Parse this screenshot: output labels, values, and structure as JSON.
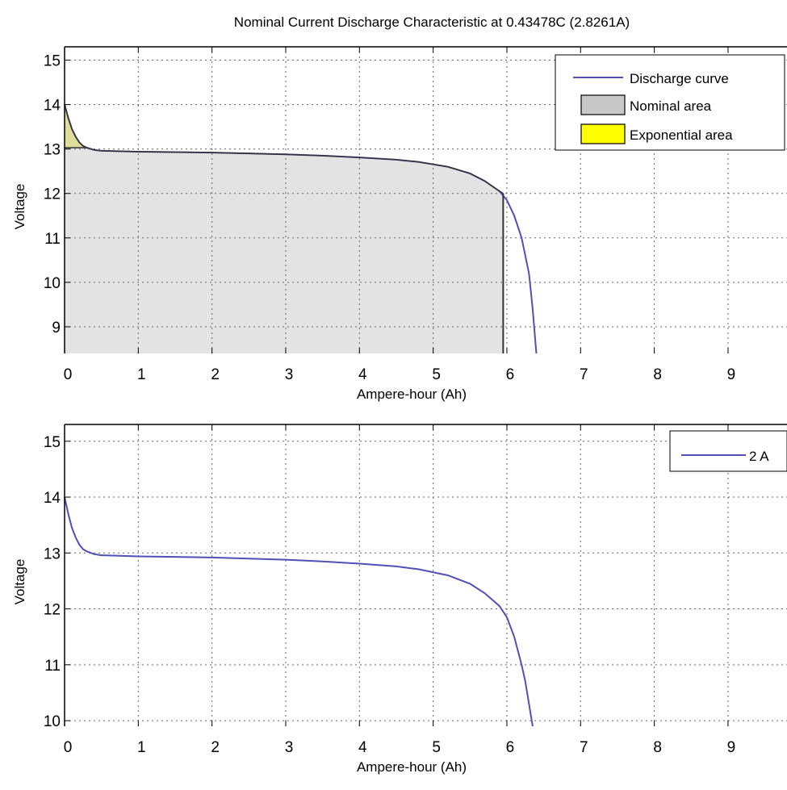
{
  "chart_data": [
    {
      "type": "line",
      "title": "Nominal Current Discharge Characteristic at 0.43478C (2.8261A)",
      "xlabel": "Ampere-hour (Ah)",
      "ylabel": "Voltage",
      "xlim": [
        0,
        9.8
      ],
      "ylim": [
        8.4,
        15.3
      ],
      "xticks": [
        0,
        1,
        2,
        3,
        4,
        5,
        6,
        7,
        8,
        9
      ],
      "yticks": [
        9,
        10,
        11,
        12,
        13,
        14,
        15
      ],
      "grid": true,
      "legend_position": "top-right",
      "series": [
        {
          "name": "Discharge curve",
          "color": "#5050b8",
          "x": [
            0,
            0.05,
            0.1,
            0.15,
            0.2,
            0.25,
            0.3,
            0.4,
            0.5,
            0.75,
            1,
            1.5,
            2,
            2.5,
            3,
            3.5,
            4,
            4.5,
            4.8,
            5.2,
            5.5,
            5.7,
            5.9,
            6.0,
            6.1,
            6.2,
            6.3,
            6.35,
            6.4
          ],
          "y": [
            14.0,
            13.7,
            13.45,
            13.28,
            13.15,
            13.07,
            13.03,
            12.98,
            12.96,
            12.95,
            12.94,
            12.93,
            12.92,
            12.9,
            12.88,
            12.85,
            12.81,
            12.76,
            12.71,
            12.6,
            12.45,
            12.28,
            12.05,
            11.85,
            11.5,
            11.0,
            10.2,
            9.4,
            8.4
          ]
        },
        {
          "name": "Nominal area",
          "color": "#c8c8c8",
          "x_end": 5.95,
          "y_end": 12.0
        },
        {
          "name": "Exponential area",
          "color": "#ffff00",
          "x_end": 0.3,
          "y_end": 13.03
        }
      ]
    },
    {
      "type": "line",
      "title": "",
      "xlabel": "Ampere-hour (Ah)",
      "ylabel": "Voltage",
      "xlim": [
        0,
        9.8
      ],
      "ylim": [
        9.9,
        15.3
      ],
      "xticks": [
        0,
        1,
        2,
        3,
        4,
        5,
        6,
        7,
        8,
        9
      ],
      "yticks": [
        10,
        11,
        12,
        13,
        14,
        15
      ],
      "grid": true,
      "legend_position": "top-right",
      "series": [
        {
          "name": "2 A",
          "color": "#5050b8",
          "x": [
            0,
            0.05,
            0.1,
            0.15,
            0.2,
            0.25,
            0.3,
            0.4,
            0.5,
            0.75,
            1,
            1.5,
            2,
            2.5,
            3,
            3.5,
            4,
            4.5,
            4.8,
            5.2,
            5.5,
            5.7,
            5.9,
            6.0,
            6.1,
            6.2,
            6.25,
            6.3,
            6.35
          ],
          "y": [
            14.0,
            13.7,
            13.45,
            13.28,
            13.15,
            13.07,
            13.03,
            12.98,
            12.96,
            12.95,
            12.94,
            12.93,
            12.92,
            12.9,
            12.88,
            12.85,
            12.81,
            12.76,
            12.71,
            12.6,
            12.45,
            12.28,
            12.05,
            11.85,
            11.5,
            11.0,
            10.7,
            10.3,
            9.9
          ]
        }
      ]
    }
  ]
}
